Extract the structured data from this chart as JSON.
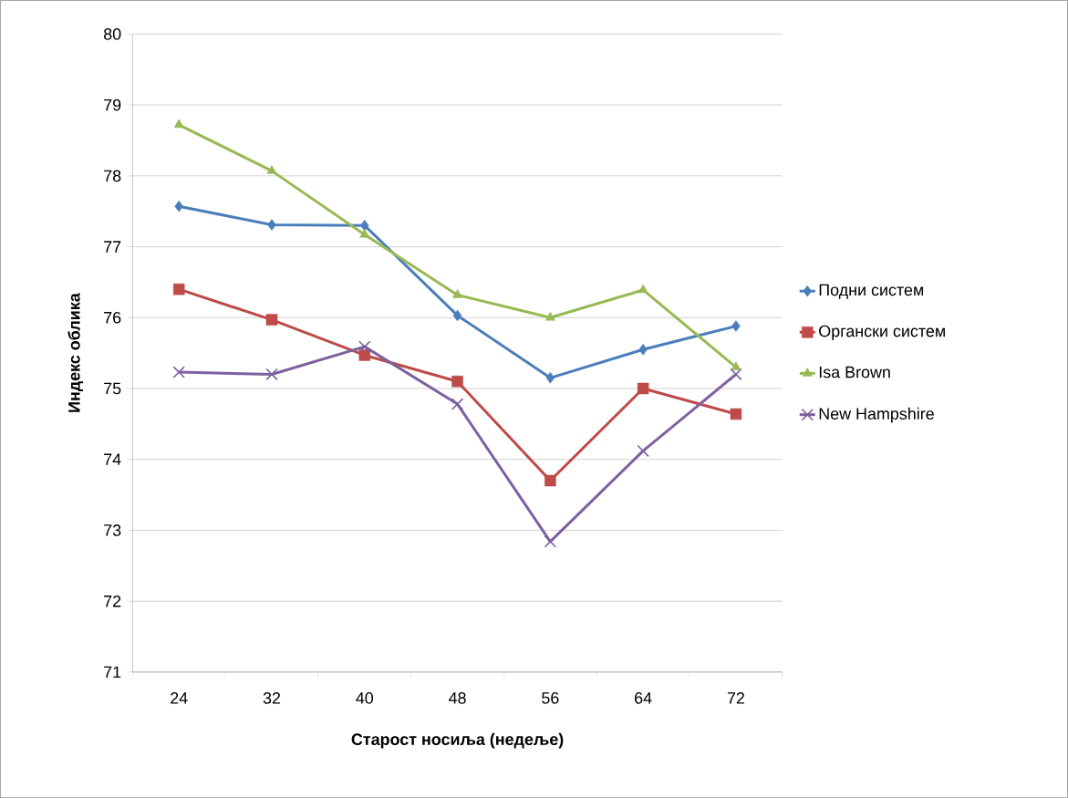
{
  "chart_data": {
    "type": "line",
    "xlabel": "Старост носиља (недеље)",
    "ylabel": "Индекс облика",
    "categories": [
      "24",
      "32",
      "40",
      "48",
      "56",
      "64",
      "72"
    ],
    "series": [
      {
        "name": "Подни систем",
        "color": "#4a7ebb",
        "marker": "diamond",
        "values": [
          77.57,
          77.31,
          77.3,
          76.03,
          75.15,
          75.55,
          75.88
        ]
      },
      {
        "name": "Органски систем",
        "color": "#be4b48",
        "marker": "square",
        "values": [
          76.4,
          75.97,
          75.47,
          75.1,
          73.7,
          75.0,
          74.64
        ]
      },
      {
        "name": "Isa Brown",
        "color": "#98b954",
        "marker": "triangle",
        "values": [
          78.72,
          78.07,
          77.17,
          76.32,
          76.0,
          76.39,
          75.3
        ]
      },
      {
        "name": "New Hampshire",
        "color": "#7d60a0",
        "marker": "cross",
        "values": [
          75.23,
          75.2,
          75.59,
          74.78,
          72.84,
          74.12,
          75.2
        ]
      }
    ],
    "ylim": [
      71,
      80
    ],
    "yticks": [
      71,
      72,
      73,
      74,
      75,
      76,
      77,
      78,
      79,
      80
    ],
    "grid": "y",
    "legend": "right",
    "line_style": "solid"
  }
}
